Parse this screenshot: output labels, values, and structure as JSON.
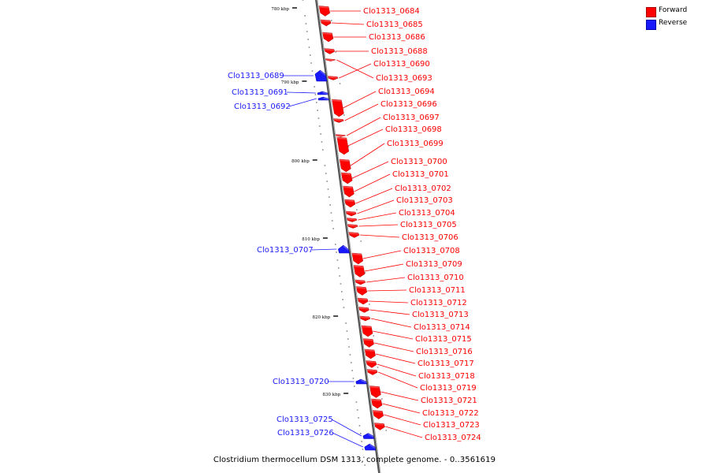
{
  "colors": {
    "forward": "#ff0000",
    "reverse": "#1a1aff",
    "track": "#707070"
  },
  "legend": {
    "forward": "Forward",
    "reverse": "Reverse"
  },
  "caption": "Clostridium thermocellum DSM 1313, complete genome. - 0..3561619",
  "scale": {
    "unit": "kbp",
    "labels": [
      "780 kbp",
      "790 kbp",
      "800 kbp",
      "810 kbp",
      "820 kbp",
      "830 kbp"
    ]
  },
  "genes": [
    {
      "name": "Clo1313_0684",
      "strand": "forward"
    },
    {
      "name": "Clo1313_0685",
      "strand": "forward"
    },
    {
      "name": "Clo1313_0686",
      "strand": "forward"
    },
    {
      "name": "Clo1313_0688",
      "strand": "forward"
    },
    {
      "name": "Clo1313_0690",
      "strand": "forward"
    },
    {
      "name": "Clo1313_0693",
      "strand": "forward"
    },
    {
      "name": "Clo1313_0694",
      "strand": "forward"
    },
    {
      "name": "Clo1313_0696",
      "strand": "forward"
    },
    {
      "name": "Clo1313_0697",
      "strand": "forward"
    },
    {
      "name": "Clo1313_0698",
      "strand": "forward"
    },
    {
      "name": "Clo1313_0699",
      "strand": "forward"
    },
    {
      "name": "Clo1313_0700",
      "strand": "forward"
    },
    {
      "name": "Clo1313_0701",
      "strand": "forward"
    },
    {
      "name": "Clo1313_0702",
      "strand": "forward"
    },
    {
      "name": "Clo1313_0703",
      "strand": "forward"
    },
    {
      "name": "Clo1313_0704",
      "strand": "forward"
    },
    {
      "name": "Clo1313_0705",
      "strand": "forward"
    },
    {
      "name": "Clo1313_0706",
      "strand": "forward"
    },
    {
      "name": "Clo1313_0708",
      "strand": "forward"
    },
    {
      "name": "Clo1313_0709",
      "strand": "forward"
    },
    {
      "name": "Clo1313_0710",
      "strand": "forward"
    },
    {
      "name": "Clo1313_0711",
      "strand": "forward"
    },
    {
      "name": "Clo1313_0712",
      "strand": "forward"
    },
    {
      "name": "Clo1313_0713",
      "strand": "forward"
    },
    {
      "name": "Clo1313_0714",
      "strand": "forward"
    },
    {
      "name": "Clo1313_0715",
      "strand": "forward"
    },
    {
      "name": "Clo1313_0716",
      "strand": "forward"
    },
    {
      "name": "Clo1313_0717",
      "strand": "forward"
    },
    {
      "name": "Clo1313_0718",
      "strand": "forward"
    },
    {
      "name": "Clo1313_0719",
      "strand": "forward"
    },
    {
      "name": "Clo1313_0721",
      "strand": "forward"
    },
    {
      "name": "Clo1313_0722",
      "strand": "forward"
    },
    {
      "name": "Clo1313_0723",
      "strand": "forward"
    },
    {
      "name": "Clo1313_0724",
      "strand": "forward"
    },
    {
      "name": "Clo1313_0689",
      "strand": "reverse"
    },
    {
      "name": "Clo1313_0691",
      "strand": "reverse"
    },
    {
      "name": "Clo1313_0692",
      "strand": "reverse"
    },
    {
      "name": "Clo1313_0707",
      "strand": "reverse"
    },
    {
      "name": "Clo1313_0720",
      "strand": "reverse"
    },
    {
      "name": "Clo1313_0725",
      "strand": "reverse"
    },
    {
      "name": "Clo1313_0726",
      "strand": "reverse"
    }
  ]
}
